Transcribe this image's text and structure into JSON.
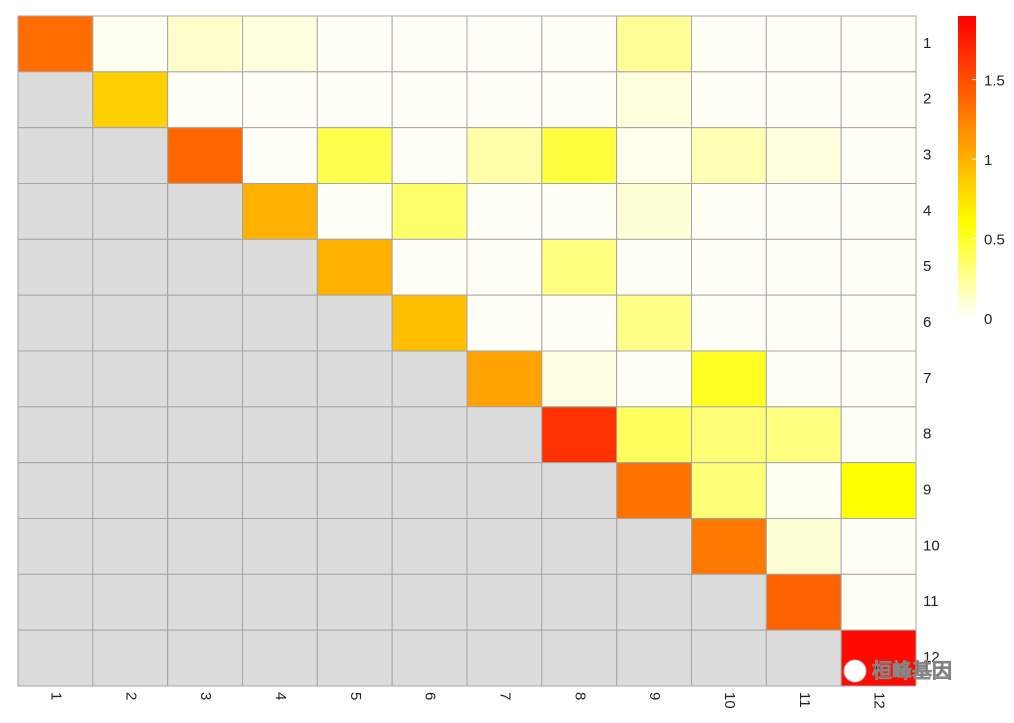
{
  "chart_data": {
    "type": "heatmap",
    "x_categories": [
      "1",
      "2",
      "3",
      "4",
      "5",
      "6",
      "7",
      "8",
      "9",
      "10",
      "11",
      "12"
    ],
    "y_categories": [
      "1",
      "2",
      "3",
      "4",
      "5",
      "6",
      "7",
      "8",
      "9",
      "10",
      "11",
      "12"
    ],
    "values": [
      [
        1.35,
        0.03,
        0.12,
        0.08,
        0.02,
        0.02,
        0.02,
        0.02,
        0.25,
        0.02,
        0.02,
        0.02
      ],
      [
        null,
        0.84,
        0.02,
        0.02,
        0.02,
        0.02,
        0.02,
        0.02,
        0.08,
        0.02,
        0.02,
        0.02
      ],
      [
        null,
        null,
        1.38,
        0.02,
        0.42,
        0.02,
        0.2,
        0.45,
        0.05,
        0.18,
        0.08,
        0.02
      ],
      [
        null,
        null,
        null,
        1.0,
        0.02,
        0.35,
        0.02,
        0.02,
        0.1,
        0.02,
        0.02,
        0.02
      ],
      [
        null,
        null,
        null,
        null,
        1.0,
        0.02,
        0.02,
        0.3,
        0.02,
        0.02,
        0.02,
        0.02
      ],
      [
        null,
        null,
        null,
        null,
        null,
        0.93,
        0.02,
        0.02,
        0.28,
        0.02,
        0.02,
        0.02
      ],
      [
        null,
        null,
        null,
        null,
        null,
        null,
        1.08,
        0.06,
        0.02,
        0.52,
        0.02,
        0.02
      ],
      [
        null,
        null,
        null,
        null,
        null,
        null,
        null,
        1.65,
        0.38,
        0.32,
        0.3,
        0.02
      ],
      [
        null,
        null,
        null,
        null,
        null,
        null,
        null,
        null,
        1.32,
        0.32,
        0.03,
        0.6
      ],
      [
        null,
        null,
        null,
        null,
        null,
        null,
        null,
        null,
        null,
        1.29,
        0.1,
        0.02
      ],
      [
        null,
        null,
        null,
        null,
        null,
        null,
        null,
        null,
        null,
        null,
        1.4,
        0.02
      ],
      [
        null,
        null,
        null,
        null,
        null,
        null,
        null,
        null,
        null,
        null,
        null,
        1.85
      ]
    ],
    "colors": [
      "#ffffff",
      "#ffff00",
      "#ff0000"
    ],
    "color_stops": [
      0,
      0.6,
      1.9
    ],
    "missing_color": "#dcdcdc",
    "clim": [
      0,
      1.9
    ],
    "cticks": [
      0,
      0.5,
      1,
      1.5
    ],
    "watermark": "桓峰基因"
  }
}
